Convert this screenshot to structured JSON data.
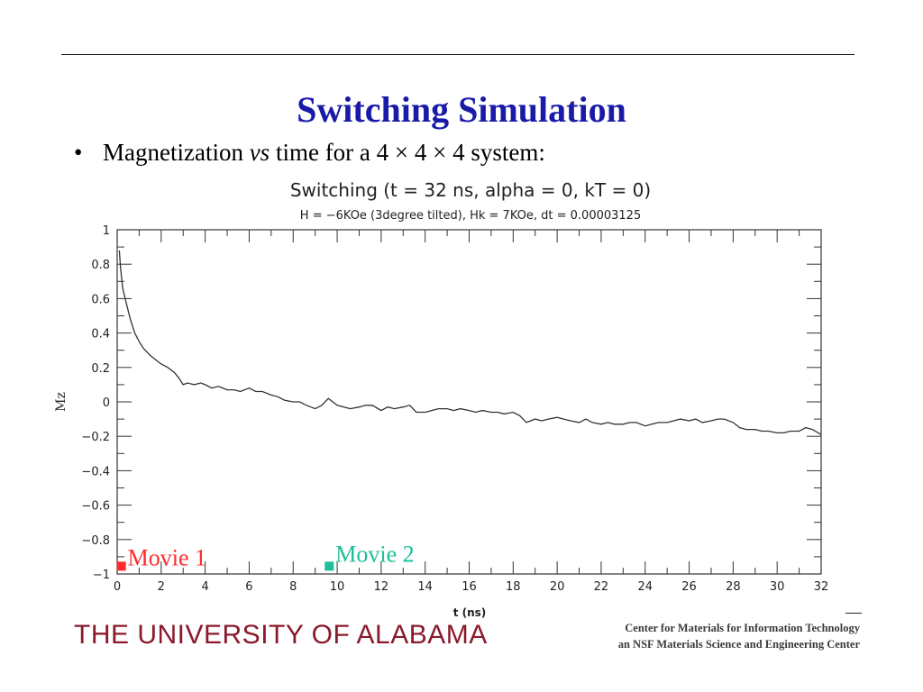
{
  "slide": {
    "title": "Switching Simulation",
    "bullet": {
      "marker": "•",
      "text_before": "Magnetization ",
      "text_italic": "vs",
      "text_after": " time for a 4 × 4 × 4 system:"
    }
  },
  "footer": {
    "university": "THE UNIVERSITY OF ALABAMA",
    "center_line1": "Center for Materials for Information Technology",
    "center_line2": "an NSF Materials Science and Engineering Center"
  },
  "chart_data": {
    "type": "line",
    "title": "Switching (t = 32 ns, alpha = 0, kT = 0)",
    "subtitle": "H = −6KOe (3degree tilted), Hk = 7KOe, dt = 0.00003125",
    "xlabel": "t (ns)",
    "ylabel": "Mz",
    "xlim": [
      0,
      32
    ],
    "ylim": [
      -1,
      1
    ],
    "x_ticks": [
      "0",
      "2",
      "4",
      "6",
      "8",
      "10",
      "12",
      "14",
      "16",
      "18",
      "20",
      "22",
      "24",
      "26",
      "28",
      "30",
      "32"
    ],
    "y_ticks": [
      "−1",
      "−0.8",
      "−0.6",
      "−0.4",
      "−0.2",
      "0",
      "0.2",
      "0.4",
      "0.6",
      "0.8",
      "1"
    ],
    "grid": false,
    "line_color": "#333333",
    "series": [
      {
        "x": [
          0.1,
          0.15,
          0.25,
          0.4,
          0.6,
          0.8,
          1.0,
          1.2,
          1.5,
          1.8,
          2.0,
          2.3,
          2.6,
          2.8,
          3.0,
          3.2,
          3.5,
          3.8,
          4.0,
          4.3,
          4.6,
          5.0,
          5.3,
          5.6,
          6.0,
          6.3,
          6.6,
          7.0,
          7.3,
          7.6,
          8.0,
          8.3,
          8.6,
          9.0,
          9.3,
          9.6,
          10.0,
          10.3,
          10.6,
          11.0,
          11.3,
          11.6,
          12.0,
          12.3,
          12.6,
          13.0,
          13.3,
          13.6,
          14.0,
          14.3,
          14.6,
          15.0,
          15.3,
          15.6,
          16.0,
          16.3,
          16.6,
          17.0,
          17.3,
          17.6,
          18.0,
          18.3,
          18.6,
          19.0,
          19.3,
          19.6,
          20.0,
          20.3,
          20.6,
          21.0,
          21.3,
          21.6,
          22.0,
          22.3,
          22.6,
          23.0,
          23.3,
          23.6,
          24.0,
          24.3,
          24.6,
          25.0,
          25.3,
          25.6,
          26.0,
          26.3,
          26.6,
          27.0,
          27.3,
          27.6,
          28.0,
          28.3,
          28.6,
          29.0,
          29.3,
          29.6,
          30.0,
          30.3,
          30.6,
          31.0,
          31.3,
          31.6,
          32.0
        ],
        "y": [
          0.88,
          0.78,
          0.66,
          0.58,
          0.48,
          0.4,
          0.35,
          0.31,
          0.27,
          0.24,
          0.22,
          0.2,
          0.17,
          0.14,
          0.1,
          0.11,
          0.1,
          0.11,
          0.1,
          0.08,
          0.09,
          0.07,
          0.07,
          0.06,
          0.08,
          0.06,
          0.06,
          0.04,
          0.03,
          0.01,
          0.0,
          0.0,
          -0.02,
          -0.04,
          -0.02,
          0.02,
          -0.02,
          -0.03,
          -0.04,
          -0.03,
          -0.02,
          -0.02,
          -0.05,
          -0.03,
          -0.04,
          -0.03,
          -0.02,
          -0.06,
          -0.06,
          -0.05,
          -0.04,
          -0.04,
          -0.05,
          -0.04,
          -0.05,
          -0.06,
          -0.05,
          -0.06,
          -0.06,
          -0.07,
          -0.06,
          -0.08,
          -0.12,
          -0.1,
          -0.11,
          -0.1,
          -0.09,
          -0.1,
          -0.11,
          -0.12,
          -0.1,
          -0.12,
          -0.13,
          -0.12,
          -0.13,
          -0.13,
          -0.12,
          -0.12,
          -0.14,
          -0.13,
          -0.12,
          -0.12,
          -0.11,
          -0.1,
          -0.11,
          -0.1,
          -0.12,
          -0.11,
          -0.1,
          -0.1,
          -0.12,
          -0.15,
          -0.16,
          -0.16,
          -0.17,
          -0.17,
          -0.18,
          -0.18,
          -0.17,
          -0.17,
          -0.15,
          -0.16,
          -0.19
        ]
      }
    ],
    "annotations": [
      {
        "text": "Movie 1",
        "x": 0.15,
        "y": -0.96,
        "color": "#ff2a2a"
      },
      {
        "text": "Movie 2",
        "x": 9.6,
        "y": -0.96,
        "color": "#1dbf9a"
      }
    ]
  }
}
